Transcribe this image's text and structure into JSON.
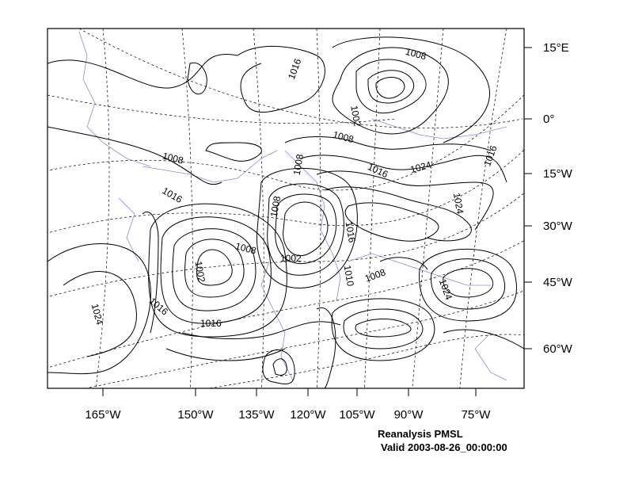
{
  "map": {
    "lon_labels": [
      "165°W",
      "150°W",
      "135°W",
      "120°W",
      "105°W",
      "90°W",
      "75°W"
    ],
    "lat_labels": [
      "15°E",
      "0°",
      "15°W",
      "30°W",
      "45°W",
      "60°W"
    ],
    "isobar_labels": [
      "1016",
      "1008",
      "1002",
      "1008",
      "1008",
      "1008",
      "1016",
      "1024",
      "1024",
      "1016",
      "1016",
      "1008",
      "1002",
      "1016",
      "1010",
      "1008",
      "1008",
      "1002",
      "1024",
      "1024",
      "1016",
      "1016"
    ],
    "colors": {
      "contour": "#000000",
      "coastline": "#9b86c8",
      "grid": "#000000"
    }
  },
  "caption": {
    "line1": "Reanalysis PMSL",
    "line2": "Valid 2003-08-26_00:00:00"
  }
}
